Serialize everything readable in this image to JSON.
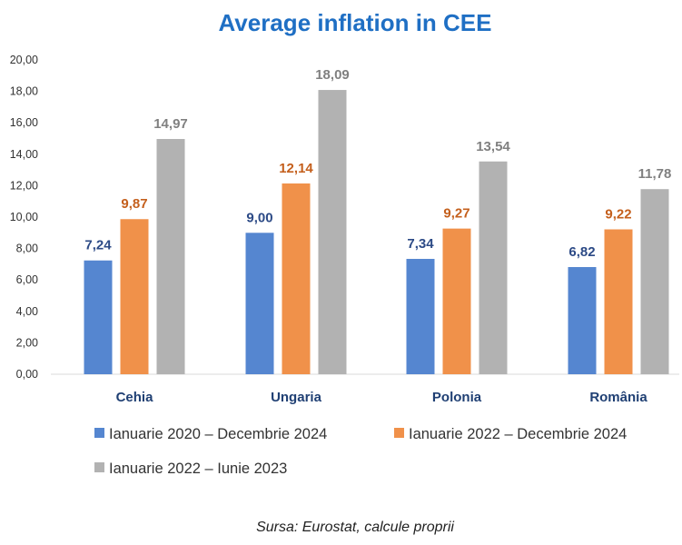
{
  "chart_data": {
    "type": "bar",
    "title": "Average inflation in CEE",
    "categories": [
      "Cehia",
      "Ungaria",
      "Polonia",
      "România"
    ],
    "series": [
      {
        "name": "Ianuarie 2020 – Decembrie 2024",
        "values": [
          7.24,
          9.0,
          7.34,
          6.82
        ],
        "labels": [
          "7,24",
          "9,00",
          "7,34",
          "6,82"
        ],
        "color": "#5586d0",
        "label_color": "#2c4a86"
      },
      {
        "name": "Ianuarie 2022 – Decembrie 2024",
        "values": [
          9.87,
          12.14,
          9.27,
          9.22
        ],
        "labels": [
          "9,87",
          "12,14",
          "9,27",
          "9,22"
        ],
        "color": "#f0914a",
        "label_color": "#c45f1c"
      },
      {
        "name": "Ianuarie 2022 – Iunie 2023",
        "values": [
          14.97,
          18.09,
          13.54,
          11.78
        ],
        "labels": [
          "14,97",
          "18,09",
          "13,54",
          "11,78"
        ],
        "color": "#b2b2b2",
        "label_color": "#808080"
      }
    ],
    "ylim": [
      0,
      20
    ],
    "yticks": [
      "0,00",
      "2,00",
      "4,00",
      "6,00",
      "8,00",
      "10,00",
      "12,00",
      "14,00",
      "16,00",
      "18,00",
      "20,00"
    ],
    "xlabel": "",
    "ylabel": "",
    "grid": false,
    "legend": "bottom",
    "source": "Sursa: Eurostat, calcule proprii"
  }
}
